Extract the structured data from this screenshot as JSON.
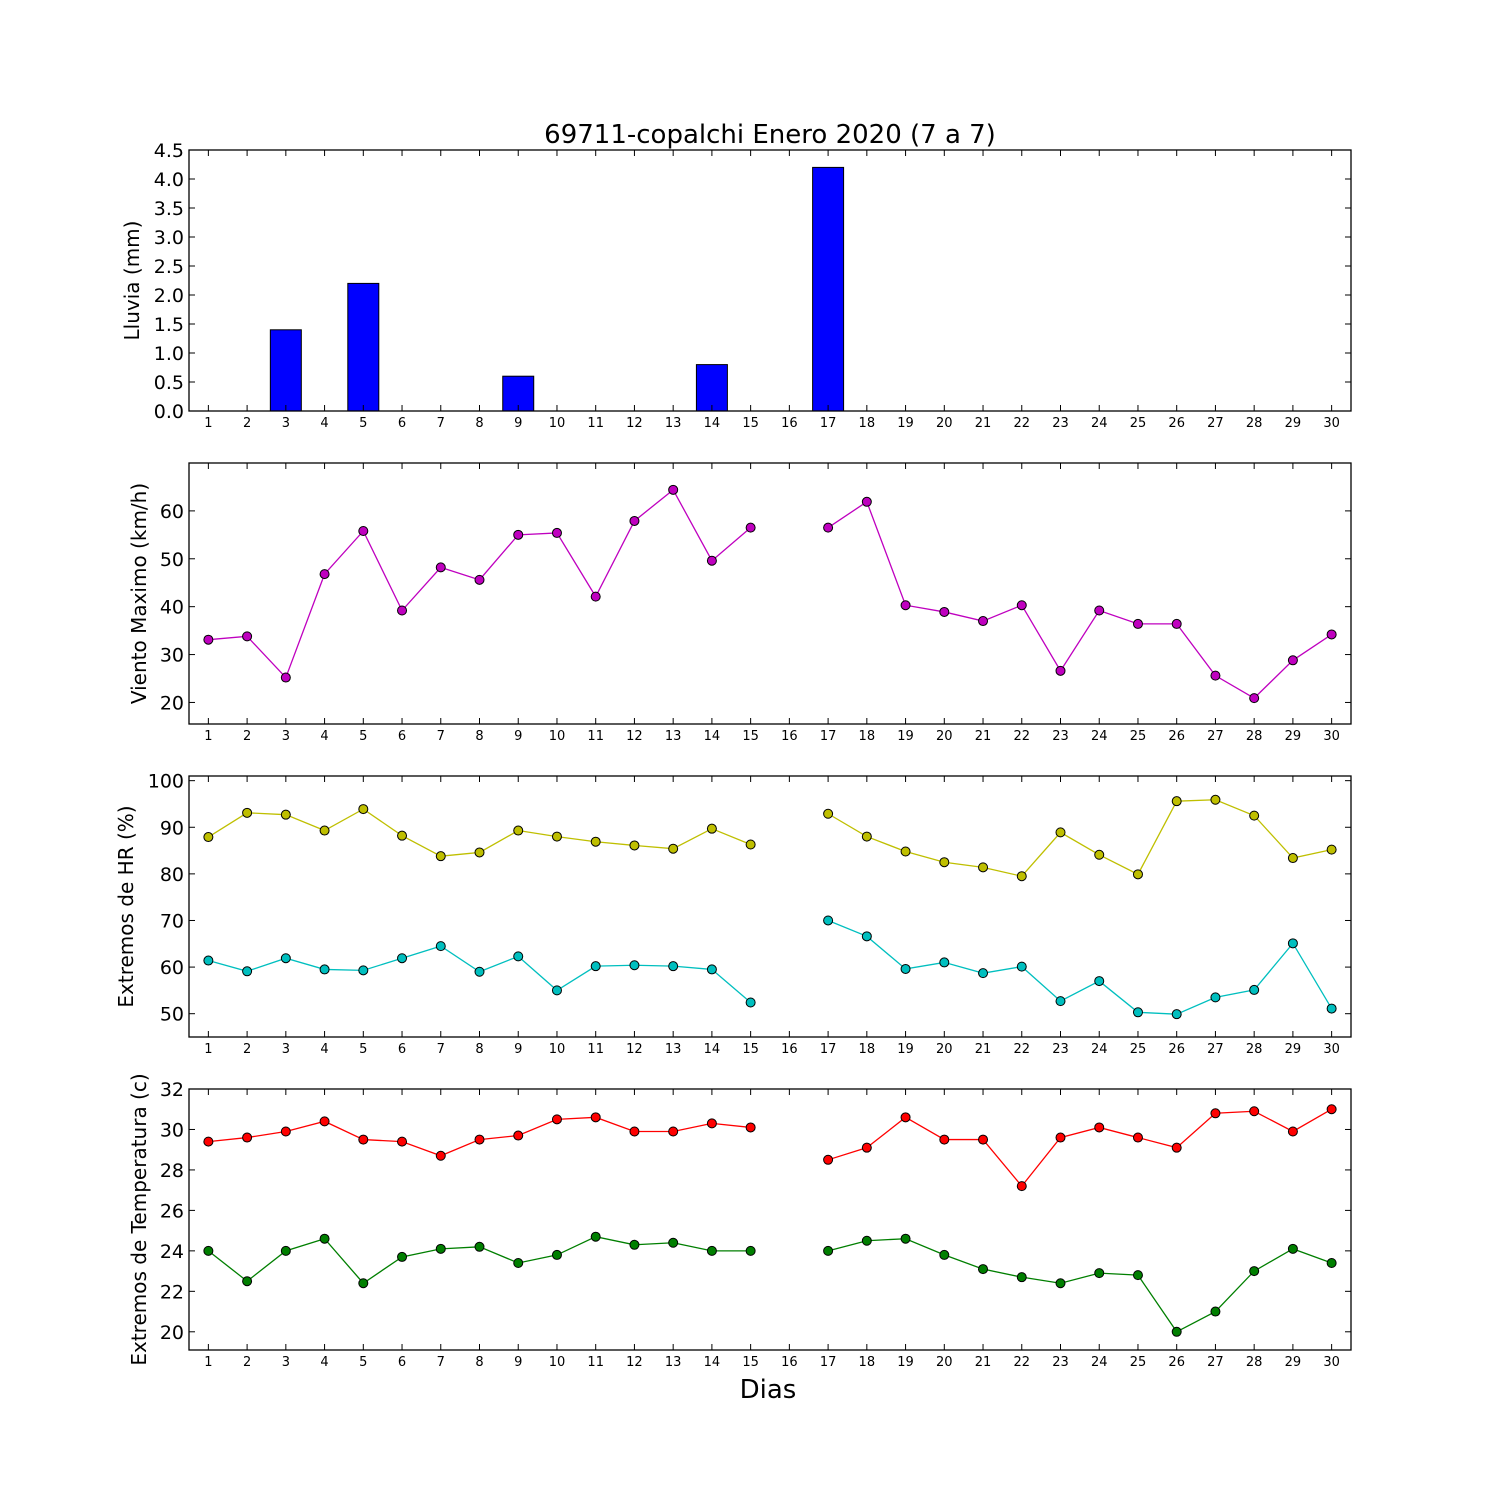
{
  "figure": {
    "title": "69711-copalchi Enero 2020  (7 a 7)",
    "xlabel": "Dias"
  },
  "chart_data": [
    {
      "type": "bar",
      "ylabel": "Lluvia (mm)",
      "x": [
        1,
        2,
        3,
        4,
        5,
        6,
        7,
        8,
        9,
        10,
        11,
        12,
        13,
        14,
        15,
        16,
        17,
        18,
        19,
        20,
        21,
        22,
        23,
        24,
        25,
        26,
        27,
        28,
        29,
        30
      ],
      "xlim": [
        0.5,
        30.5
      ],
      "ylim": [
        0,
        4.5
      ],
      "yticks": [
        0.0,
        0.5,
        1.0,
        1.5,
        2.0,
        2.5,
        3.0,
        3.5,
        4.0,
        4.5
      ],
      "ytick_labels": [
        "0.0",
        "0.5",
        "1.0",
        "1.5",
        "2.0",
        "2.5",
        "3.0",
        "3.5",
        "4.0",
        "4.5"
      ],
      "series": [
        {
          "color": "#0000ff",
          "values": [
            0,
            0,
            1.4,
            0,
            2.2,
            0,
            0,
            0,
            0.6,
            0,
            0,
            0,
            0,
            0.8,
            0,
            null,
            4.2,
            0,
            0,
            0,
            0,
            0,
            0,
            0,
            0,
            0,
            0,
            0,
            0,
            0
          ]
        }
      ]
    },
    {
      "type": "line",
      "ylabel": "Viento Maximo (km/h)",
      "x": [
        1,
        2,
        3,
        4,
        5,
        6,
        7,
        8,
        9,
        10,
        11,
        12,
        13,
        14,
        15,
        16,
        17,
        18,
        19,
        20,
        21,
        22,
        23,
        24,
        25,
        26,
        27,
        28,
        29,
        30
      ],
      "xlim": [
        0.5,
        30.5
      ],
      "ylim": [
        15.5,
        70
      ],
      "yticks": [
        20,
        30,
        40,
        50,
        60
      ],
      "ytick_labels": [
        "20",
        "30",
        "40",
        "50",
        "60"
      ],
      "series": [
        {
          "color": "#bf00bf",
          "values": [
            33.1,
            33.8,
            25.2,
            46.8,
            55.8,
            39.2,
            48.2,
            45.6,
            55.0,
            55.4,
            42.1,
            57.9,
            64.4,
            49.6,
            56.5,
            null,
            56.5,
            61.9,
            40.3,
            38.9,
            37.0,
            40.3,
            26.6,
            39.2,
            36.4,
            36.4,
            25.6,
            20.9,
            28.8,
            34.2
          ]
        }
      ]
    },
    {
      "type": "line",
      "ylabel": "Extremos de HR (%)",
      "x": [
        1,
        2,
        3,
        4,
        5,
        6,
        7,
        8,
        9,
        10,
        11,
        12,
        13,
        14,
        15,
        16,
        17,
        18,
        19,
        20,
        21,
        22,
        23,
        24,
        25,
        26,
        27,
        28,
        29,
        30
      ],
      "xlim": [
        0.5,
        30.5
      ],
      "ylim": [
        45,
        101
      ],
      "yticks": [
        50,
        60,
        70,
        80,
        90,
        100
      ],
      "ytick_labels": [
        "50",
        "60",
        "70",
        "80",
        "90",
        "100"
      ],
      "series": [
        {
          "color": "#bfbf00",
          "values": [
            87.9,
            93.1,
            92.7,
            89.3,
            93.9,
            88.2,
            83.8,
            84.6,
            89.3,
            88.0,
            86.9,
            86.1,
            85.4,
            89.7,
            86.3,
            null,
            92.9,
            88.0,
            84.8,
            82.5,
            81.4,
            79.5,
            88.9,
            84.1,
            79.9,
            95.6,
            95.9,
            92.5,
            83.4,
            85.2
          ]
        },
        {
          "color": "#00bfbf",
          "values": [
            61.4,
            59.1,
            61.9,
            59.5,
            59.3,
            61.9,
            64.5,
            59.0,
            62.3,
            55.0,
            60.2,
            60.4,
            60.2,
            59.5,
            52.4,
            null,
            70.0,
            66.6,
            59.6,
            61.0,
            58.7,
            60.1,
            52.7,
            57.0,
            50.3,
            49.9,
            53.5,
            55.1,
            65.1,
            51.1
          ]
        }
      ]
    },
    {
      "type": "line",
      "ylabel": "Extremos de Temperatura (c)",
      "x": [
        1,
        2,
        3,
        4,
        5,
        6,
        7,
        8,
        9,
        10,
        11,
        12,
        13,
        14,
        15,
        16,
        17,
        18,
        19,
        20,
        21,
        22,
        23,
        24,
        25,
        26,
        27,
        28,
        29,
        30
      ],
      "xlim": [
        0.5,
        30.5
      ],
      "ylim": [
        19.1,
        32
      ],
      "yticks": [
        20,
        22,
        24,
        26,
        28,
        30,
        32
      ],
      "ytick_labels": [
        "20",
        "22",
        "24",
        "26",
        "28",
        "30",
        "32"
      ],
      "series": [
        {
          "color": "#ff0000",
          "values": [
            29.4,
            29.6,
            29.9,
            30.4,
            29.5,
            29.4,
            28.7,
            29.5,
            29.7,
            30.5,
            30.6,
            29.9,
            29.9,
            30.3,
            30.1,
            null,
            28.5,
            29.1,
            30.6,
            29.5,
            29.5,
            27.2,
            29.6,
            30.1,
            29.6,
            29.1,
            30.8,
            30.9,
            29.9,
            31.0
          ]
        },
        {
          "color": "#007f00",
          "values": [
            24.0,
            22.5,
            24.0,
            24.6,
            22.4,
            23.7,
            24.1,
            24.2,
            23.4,
            23.8,
            24.7,
            24.3,
            24.4,
            24.0,
            24.0,
            null,
            24.0,
            24.5,
            24.6,
            23.8,
            23.1,
            22.7,
            22.4,
            22.9,
            22.8,
            20.0,
            21.0,
            23.0,
            24.1,
            23.4
          ]
        }
      ]
    }
  ]
}
